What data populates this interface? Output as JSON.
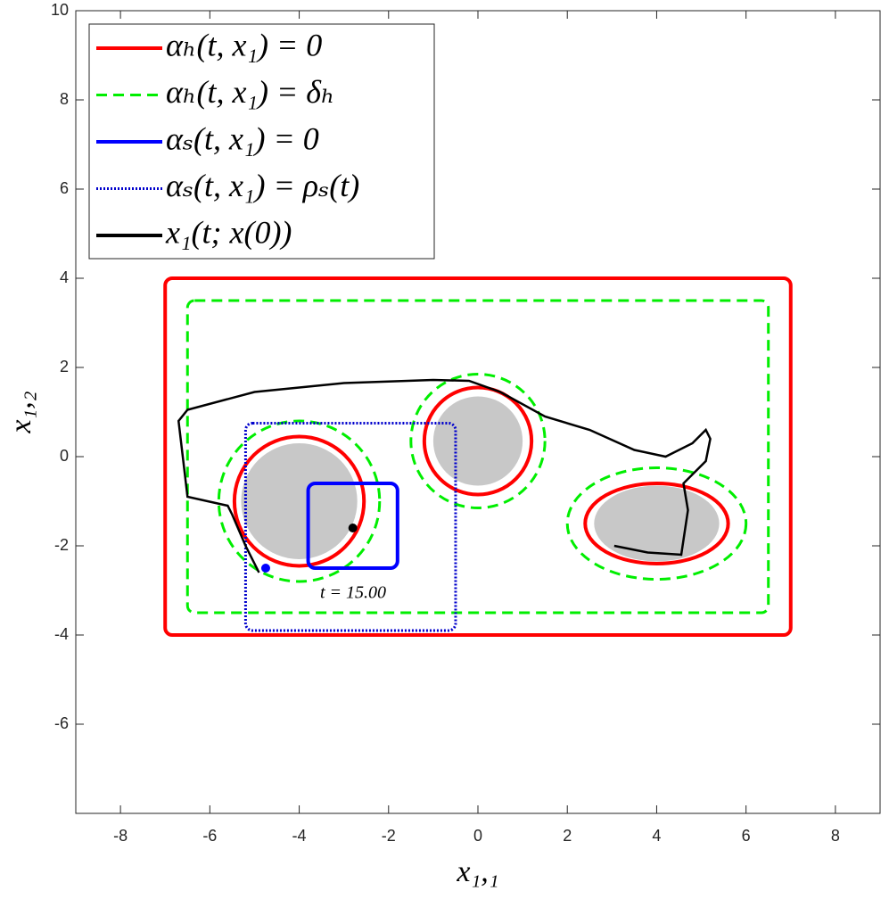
{
  "chart_data": {
    "type": "line",
    "xlabel": "x₁,₁",
    "ylabel": "x₁,₂",
    "xlim": [
      -9,
      9
    ],
    "ylim": [
      -8,
      10
    ],
    "xticks": [
      -8,
      -6,
      -4,
      -2,
      0,
      2,
      4,
      6,
      8
    ],
    "yticks": [
      -6,
      -4,
      -2,
      0,
      2,
      4,
      6,
      8,
      10
    ],
    "legend": "upper left",
    "annotation": "t = 15.00",
    "obstacle_color": "#c8c8c8",
    "obstacles": [
      {
        "cx": -4,
        "cy": -1,
        "rx": 1.3,
        "ry": 1.3
      },
      {
        "cx": 0,
        "cy": 0.35,
        "rx": 1.0,
        "ry": 1.0
      },
      {
        "cx": 4,
        "cy": -1.5,
        "rx": 1.4,
        "ry": 0.85
      }
    ],
    "series": [
      {
        "name": "αₕ(t, x₁) = 0",
        "color": "#ff0000",
        "dash": "solid",
        "rects": [
          {
            "x0": -7,
            "x1": 7,
            "y0": -4,
            "y1": 4
          }
        ],
        "ellipses": [
          {
            "cx": -4,
            "cy": -1,
            "rx": 1.45,
            "ry": 1.45
          },
          {
            "cx": 0,
            "cy": 0.35,
            "rx": 1.2,
            "ry": 1.2
          },
          {
            "cx": 4,
            "cy": -1.5,
            "rx": 1.6,
            "ry": 0.9
          }
        ]
      },
      {
        "name": "αₕ(t, x₁) = δₕ",
        "color": "#00ee00",
        "dash": "dashed",
        "rects": [
          {
            "x0": -6.5,
            "x1": 6.5,
            "y0": -3.5,
            "y1": 3.5
          }
        ],
        "ellipses": [
          {
            "cx": -4,
            "cy": -1,
            "rx": 1.8,
            "ry": 1.8
          },
          {
            "cx": 0,
            "cy": 0.35,
            "rx": 1.5,
            "ry": 1.5
          },
          {
            "cx": 4,
            "cy": -1.5,
            "rx": 2.0,
            "ry": 1.25
          }
        ]
      },
      {
        "name": "αₛ(t, x₁) = 0",
        "color": "#0000ff",
        "dash": "solid",
        "rects": [
          {
            "x0": -3.8,
            "x1": -1.8,
            "y0": -2.5,
            "y1": -0.6
          }
        ]
      },
      {
        "name": "αₛ(t, x₁) = ρₛ(t)",
        "color": "#0000cc",
        "dash": "dotted",
        "rects": [
          {
            "x0": -5.2,
            "x1": -0.5,
            "y0": -3.9,
            "y1": 0.75
          }
        ]
      },
      {
        "name": "x₁(t; x(0))",
        "color": "#000000",
        "dash": "solid",
        "x": [
          -4.9,
          -5.2,
          -5.5,
          -5.6,
          -6.5,
          -6.7,
          -6.5,
          -5.0,
          -3.0,
          -1.0,
          -0.2,
          0.5,
          1.5,
          2.5,
          3.5,
          4.2,
          4.8,
          5.1,
          5.2,
          5.1,
          4.6,
          4.7,
          4.55,
          3.8,
          3.05
        ],
        "y": [
          -2.6,
          -2.0,
          -1.3,
          -1.1,
          -0.9,
          0.8,
          1.05,
          1.45,
          1.65,
          1.72,
          1.7,
          1.45,
          0.9,
          0.6,
          0.15,
          0.0,
          0.3,
          0.6,
          0.4,
          -0.1,
          -0.6,
          -1.2,
          -2.2,
          -2.15,
          -2.0
        ]
      }
    ],
    "markers": [
      {
        "x": -2.8,
        "y": -1.6,
        "color": "#000000"
      },
      {
        "x": -4.75,
        "y": -2.5,
        "color": "#0000ff"
      }
    ]
  }
}
